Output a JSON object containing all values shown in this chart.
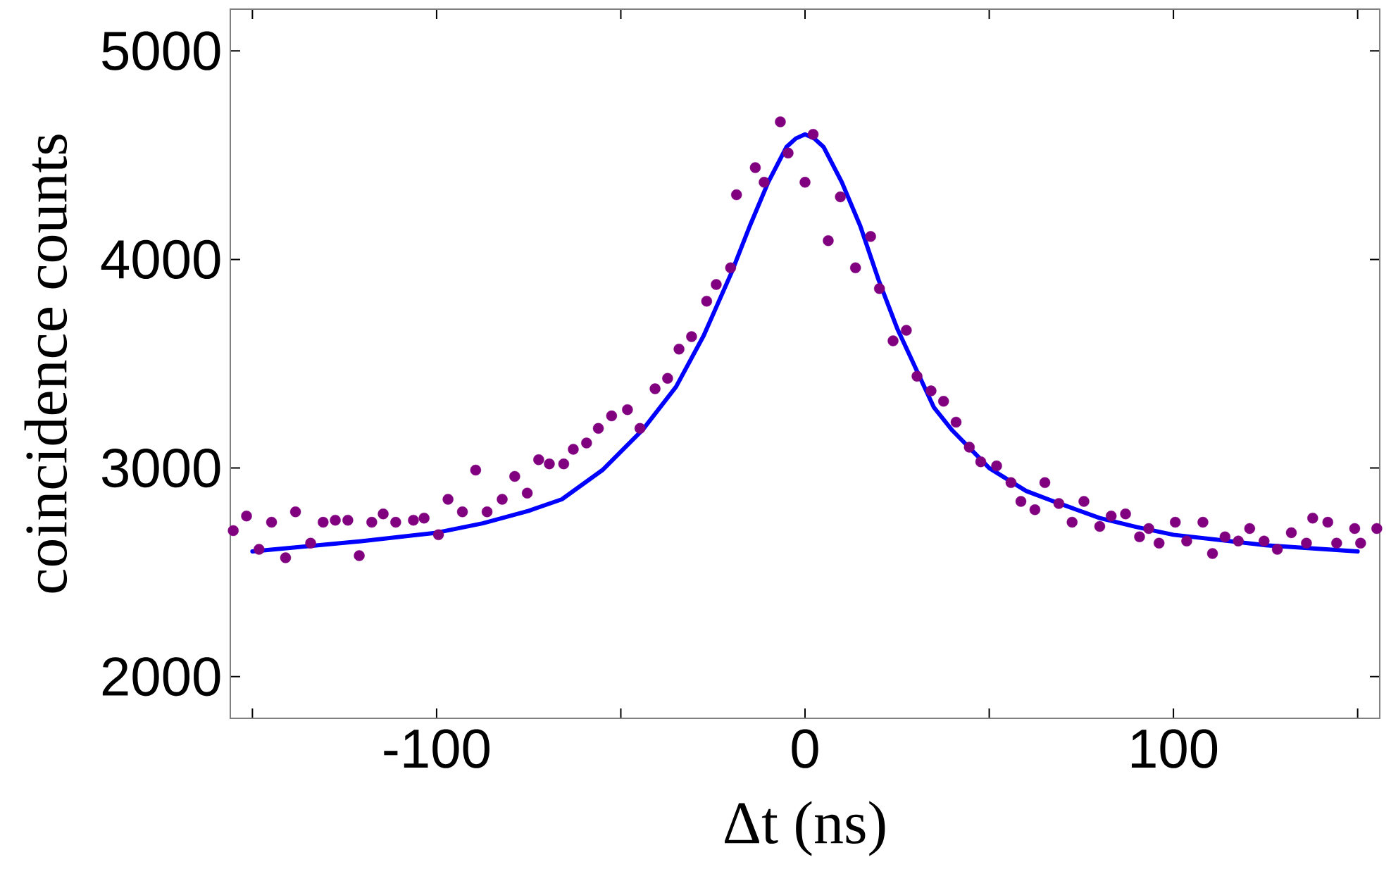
{
  "chart_data": {
    "type": "scatter",
    "xlabel": "Δt (ns)",
    "ylabel": "coincidence counts",
    "xlim": [
      -156,
      156
    ],
    "ylim": [
      1800,
      5200
    ],
    "xticks": [
      {
        "value": -150,
        "label": null
      },
      -100,
      {
        "value": -50,
        "label": null
      },
      0,
      {
        "value": 50,
        "label": null
      },
      100,
      {
        "value": 150,
        "label": null
      }
    ],
    "yticks": [
      2000,
      3000,
      4000,
      5000
    ],
    "series": [
      {
        "color": "#800080",
        "marker": "circle",
        "x": [
          -155.2,
          -151.6,
          -148.2,
          -144.8,
          -141.0,
          -138.3,
          -134.2,
          -130.8,
          -127.5,
          -124.1,
          -121.0,
          -117.6,
          -114.5,
          -111.1,
          -106.3,
          -103.4,
          -99.5,
          -96.9,
          -93.0,
          -89.4,
          -86.3,
          -82.2,
          -78.8,
          -75.4,
          -72.3,
          -69.4,
          -65.5,
          -62.9,
          -59.3,
          -56.1,
          -52.5,
          -48.2,
          -44.8,
          -40.7,
          -37.3,
          -34.2,
          -30.8,
          -26.7,
          -24.1,
          -20.2,
          -18.6,
          -13.5,
          -11.1,
          -6.7,
          -4.6,
          0,
          2.2,
          6.3,
          9.6,
          13.7,
          17.8,
          20.2,
          23.9,
          27.5,
          30.4,
          34.2,
          37.6,
          41.0,
          44.6,
          47.7,
          52.0,
          55.9,
          58.6,
          62.4,
          65.1,
          68.9,
          72.5,
          75.7,
          80.0,
          83.1,
          87.0,
          90.8,
          93.3,
          96.1,
          100.5,
          103.6,
          108.0,
          110.6,
          114.0,
          117.6,
          120.7,
          124.6,
          128.2,
          132.0,
          136.1,
          137.8,
          141.9,
          144.3,
          149.2,
          150.8,
          155.2
        ],
        "values": [
          2700,
          2770,
          2610,
          2740,
          2570,
          2790,
          2640,
          2740,
          2750,
          2750,
          2580,
          2740,
          2780,
          2740,
          2750,
          2760,
          2680,
          2850,
          2790,
          2990,
          2790,
          2850,
          2960,
          2880,
          3040,
          3020,
          3020,
          3090,
          3120,
          3190,
          3250,
          3280,
          3190,
          3380,
          3430,
          3570,
          3630,
          3800,
          3880,
          3960,
          4310,
          4440,
          4370,
          4660,
          4510,
          4370,
          4600,
          4090,
          4300,
          3960,
          4110,
          3860,
          3610,
          3660,
          3440,
          3370,
          3320,
          3220,
          3100,
          3030,
          3010,
          2930,
          2840,
          2800,
          2930,
          2830,
          2740,
          2840,
          2720,
          2770,
          2780,
          2670,
          2710,
          2640,
          2740,
          2650,
          2740,
          2590,
          2670,
          2650,
          2710,
          2650,
          2610,
          2690,
          2640,
          2760,
          2740,
          2640,
          2710,
          2640,
          2710
        ]
      },
      {
        "type": "line",
        "color": "#0000ff",
        "marker": "none",
        "line_style": "solid",
        "x": [
          -150,
          -120,
          -100,
          -87.5,
          -75,
          -66,
          -55,
          -44,
          -35,
          -27.5,
          -20,
          -15,
          -10,
          -5,
          -2.5,
          0,
          2.5,
          5,
          10,
          15,
          20,
          25,
          30,
          35,
          40,
          45,
          50,
          60,
          67.5,
          80,
          90,
          100,
          125,
          150
        ],
        "values": [
          2600,
          2650,
          2690,
          2735,
          2795,
          2850,
          2990,
          3185,
          3390,
          3635,
          3935,
          4160,
          4370,
          4540,
          4580,
          4600,
          4580,
          4540,
          4370,
          4160,
          3900,
          3670,
          3480,
          3290,
          3180,
          3090,
          3000,
          2890,
          2840,
          2760,
          2717,
          2680,
          2630,
          2600
        ]
      }
    ]
  }
}
